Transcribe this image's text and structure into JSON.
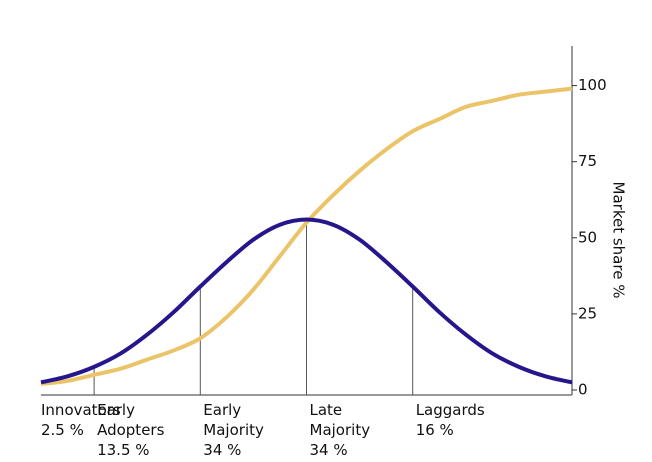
{
  "chart_data": {
    "type": "line",
    "y_label": "Market share %",
    "x": [
      -2.5,
      -2.25,
      -2,
      -1.75,
      -1.5,
      -1.25,
      -1,
      -0.75,
      -0.5,
      -0.25,
      0,
      0.25,
      0.5,
      0.75,
      1,
      1.25,
      1.5,
      1.75,
      2,
      2.25,
      2.5
    ],
    "xlim": [
      -2.5,
      2.5
    ],
    "ylim": [
      0,
      113
    ],
    "yticks": [
      0,
      25,
      50,
      75,
      100
    ],
    "series": [
      {
        "color": "#26168c",
        "values": [
          2.5,
          4.5,
          7.6,
          12,
          18.2,
          25.6,
          34,
          42.1,
          49.4,
          54.3,
          56,
          54.3,
          49.4,
          42.1,
          34,
          25.6,
          18.2,
          12,
          7.6,
          4.5,
          2.5
        ]
      },
      {
        "color": "#ebc46a",
        "values": [
          2,
          3,
          5,
          7,
          10,
          13,
          17,
          24,
          33,
          44,
          55,
          64,
          72,
          79,
          85,
          89,
          93,
          95,
          97,
          98,
          99
        ]
      }
    ],
    "dividers": [
      -2,
      -1,
      0,
      1
    ],
    "segments": [
      {
        "name": "Innovators",
        "share": "2.5 %"
      },
      {
        "name": "Early Adopters",
        "share": "13.5 %"
      },
      {
        "name": "Early Majority",
        "share": "34 %"
      },
      {
        "name": "Late Majority",
        "share": "34 %"
      },
      {
        "name": "Laggards",
        "share": "16 %"
      }
    ]
  }
}
